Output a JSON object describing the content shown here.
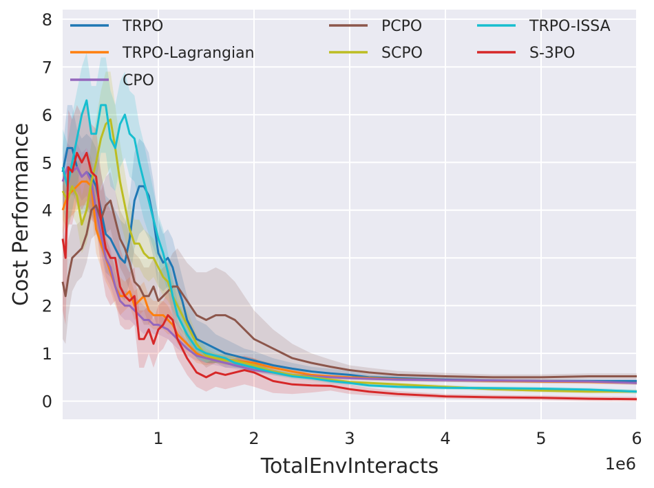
{
  "chart_data": {
    "type": "line",
    "title": "",
    "xlabel": "TotalEnvInteracts",
    "ylabel": "Cost Performance",
    "x_offset_label": "1e6",
    "xlim": [
      0,
      6
    ],
    "ylim": [
      -0.38,
      8.2
    ],
    "x_ticks": [
      1,
      2,
      3,
      4,
      5,
      6
    ],
    "y_ticks": [
      0,
      1,
      2,
      3,
      4,
      5,
      6,
      7,
      8
    ],
    "grid": true,
    "legend_position": "top",
    "series": [
      {
        "name": "TRPO",
        "color": "#1f77b4",
        "x": [
          0,
          0.05,
          0.1,
          0.15,
          0.2,
          0.25,
          0.3,
          0.35,
          0.4,
          0.45,
          0.5,
          0.55,
          0.6,
          0.65,
          0.7,
          0.75,
          0.8,
          0.85,
          0.9,
          0.95,
          1.0,
          1.05,
          1.1,
          1.15,
          1.2,
          1.25,
          1.3,
          1.4,
          1.5,
          1.6,
          1.7,
          1.8,
          1.9,
          2.0,
          2.2,
          2.4,
          2.6,
          2.8,
          3.0,
          3.2,
          3.5,
          4.0,
          4.5,
          5.0,
          5.5,
          6.0
        ],
        "y": [
          4.8,
          5.3,
          5.3,
          4.9,
          4.7,
          4.8,
          4.7,
          4.5,
          4.0,
          3.5,
          3.4,
          3.2,
          3.0,
          2.9,
          3.4,
          4.2,
          4.5,
          4.5,
          4.3,
          3.8,
          3.1,
          2.9,
          3.0,
          2.8,
          2.4,
          2.1,
          1.7,
          1.3,
          1.2,
          1.1,
          1.0,
          0.95,
          0.9,
          0.85,
          0.75,
          0.68,
          0.62,
          0.58,
          0.55,
          0.5,
          0.48,
          0.45,
          0.43,
          0.42,
          0.42,
          0.42
        ],
        "band": [
          0.5,
          0.9,
          0.9,
          0.8,
          0.8,
          0.8,
          0.8,
          0.8,
          0.8,
          0.8,
          0.8,
          0.8,
          0.8,
          0.8,
          0.9,
          1.0,
          1.0,
          0.9,
          0.9,
          0.8,
          0.7,
          0.6,
          0.6,
          0.6,
          0.6,
          0.5,
          0.5,
          0.4,
          0.4,
          0.3,
          0.3,
          0.25,
          0.2,
          0.2,
          0.15,
          0.12,
          0.1,
          0.1,
          0.08,
          0.06,
          0.05,
          0.05,
          0.04,
          0.04,
          0.04,
          0.04
        ]
      },
      {
        "name": "TRPO-Lagrangian",
        "color": "#ff7f0e",
        "x": [
          0,
          0.05,
          0.1,
          0.15,
          0.2,
          0.25,
          0.3,
          0.35,
          0.4,
          0.45,
          0.5,
          0.55,
          0.6,
          0.65,
          0.7,
          0.75,
          0.8,
          0.85,
          0.9,
          0.95,
          1.0,
          1.05,
          1.1,
          1.15,
          1.2,
          1.3,
          1.4,
          1.5,
          1.6,
          1.8,
          2.0,
          2.2,
          2.4,
          2.6,
          2.8,
          3.0,
          3.5,
          4.0,
          4.5,
          5.0,
          5.5,
          6.0
        ],
        "y": [
          4.0,
          4.3,
          4.4,
          4.5,
          4.6,
          4.6,
          4.5,
          3.6,
          3.3,
          3.0,
          2.7,
          2.4,
          2.2,
          2.2,
          2.3,
          2.0,
          2.1,
          2.2,
          1.9,
          1.8,
          1.8,
          1.8,
          1.7,
          1.6,
          1.4,
          1.2,
          1.0,
          0.9,
          0.9,
          0.85,
          0.8,
          0.7,
          0.62,
          0.55,
          0.52,
          0.5,
          0.46,
          0.44,
          0.42,
          0.41,
          0.4,
          0.38
        ],
        "band": [
          0.5,
          0.5,
          0.5,
          0.5,
          0.5,
          0.5,
          0.5,
          0.5,
          0.5,
          0.5,
          0.4,
          0.4,
          0.4,
          0.3,
          0.3,
          0.3,
          0.3,
          0.3,
          0.3,
          0.3,
          0.3,
          0.3,
          0.3,
          0.2,
          0.2,
          0.2,
          0.2,
          0.15,
          0.1,
          0.1,
          0.1,
          0.08,
          0.08,
          0.06,
          0.06,
          0.05,
          0.05,
          0.04,
          0.04,
          0.04,
          0.04,
          0.04
        ]
      },
      {
        "name": "CPO",
        "color": "#9467bd",
        "x": [
          0,
          0.05,
          0.1,
          0.15,
          0.2,
          0.25,
          0.3,
          0.35,
          0.4,
          0.45,
          0.5,
          0.55,
          0.6,
          0.65,
          0.7,
          0.75,
          0.8,
          0.85,
          0.9,
          0.95,
          1.0,
          1.1,
          1.2,
          1.3,
          1.4,
          1.5,
          1.6,
          1.8,
          2.0,
          2.2,
          2.4,
          2.6,
          2.8,
          3.0,
          3.5,
          4.0,
          4.5,
          5.0,
          5.5,
          6.0
        ],
        "y": [
          4.6,
          4.9,
          4.8,
          4.9,
          4.7,
          4.8,
          4.6,
          4.0,
          3.5,
          3.0,
          2.8,
          2.4,
          2.1,
          2.0,
          2.0,
          1.9,
          1.8,
          1.7,
          1.7,
          1.6,
          1.6,
          1.5,
          1.3,
          1.1,
          0.95,
          0.9,
          0.85,
          0.75,
          0.65,
          0.6,
          0.55,
          0.52,
          0.5,
          0.48,
          0.45,
          0.44,
          0.43,
          0.42,
          0.41,
          0.38
        ],
        "band": [
          0.5,
          0.5,
          0.5,
          0.5,
          0.5,
          0.5,
          0.5,
          0.4,
          0.4,
          0.4,
          0.4,
          0.3,
          0.3,
          0.3,
          0.3,
          0.3,
          0.3,
          0.3,
          0.2,
          0.2,
          0.2,
          0.2,
          0.2,
          0.15,
          0.1,
          0.1,
          0.1,
          0.08,
          0.06,
          0.05,
          0.05,
          0.05,
          0.05,
          0.04,
          0.04,
          0.04,
          0.04,
          0.04,
          0.04,
          0.04
        ]
      },
      {
        "name": "PCPO",
        "color": "#8c564b",
        "x": [
          0,
          0.03,
          0.06,
          0.1,
          0.15,
          0.2,
          0.25,
          0.3,
          0.35,
          0.4,
          0.45,
          0.5,
          0.55,
          0.6,
          0.65,
          0.7,
          0.75,
          0.8,
          0.85,
          0.9,
          0.95,
          1.0,
          1.05,
          1.1,
          1.15,
          1.2,
          1.3,
          1.4,
          1.5,
          1.6,
          1.7,
          1.8,
          1.9,
          2.0,
          2.1,
          2.2,
          2.3,
          2.4,
          2.5,
          2.6,
          2.8,
          3.0,
          3.2,
          3.5,
          4.0,
          4.5,
          5.0,
          5.5,
          6.0
        ],
        "y": [
          2.5,
          2.2,
          2.6,
          3.0,
          3.1,
          3.2,
          3.5,
          4.0,
          4.1,
          3.8,
          4.1,
          4.2,
          3.8,
          3.4,
          3.2,
          2.9,
          2.5,
          2.4,
          2.2,
          2.2,
          2.4,
          2.1,
          2.2,
          2.3,
          2.4,
          2.4,
          2.1,
          1.8,
          1.7,
          1.8,
          1.8,
          1.7,
          1.5,
          1.3,
          1.2,
          1.1,
          1.0,
          0.9,
          0.85,
          0.8,
          0.72,
          0.65,
          0.6,
          0.55,
          0.52,
          0.5,
          0.5,
          0.52,
          0.52
        ],
        "band": [
          1.2,
          1.0,
          0.8,
          0.7,
          0.6,
          0.6,
          0.6,
          0.6,
          0.6,
          0.6,
          0.6,
          0.6,
          0.6,
          0.6,
          0.6,
          0.6,
          0.6,
          0.6,
          0.6,
          0.6,
          0.6,
          0.6,
          0.6,
          0.6,
          0.7,
          0.8,
          0.8,
          0.9,
          1.0,
          1.0,
          0.9,
          0.8,
          0.7,
          0.6,
          0.5,
          0.4,
          0.35,
          0.3,
          0.25,
          0.2,
          0.15,
          0.1,
          0.1,
          0.08,
          0.07,
          0.06,
          0.06,
          0.06,
          0.06
        ]
      },
      {
        "name": "SCPO",
        "color": "#bcbd22",
        "x": [
          0,
          0.05,
          0.1,
          0.15,
          0.2,
          0.25,
          0.3,
          0.35,
          0.4,
          0.45,
          0.5,
          0.55,
          0.6,
          0.65,
          0.7,
          0.75,
          0.8,
          0.85,
          0.9,
          0.95,
          1.0,
          1.05,
          1.1,
          1.15,
          1.2,
          1.3,
          1.4,
          1.5,
          1.6,
          1.7,
          1.8,
          2.0,
          2.2,
          2.4,
          2.6,
          2.8,
          3.0,
          3.5,
          4.0,
          4.5,
          5.0,
          5.5,
          6.0
        ],
        "y": [
          4.4,
          4.2,
          4.5,
          4.3,
          3.7,
          4.0,
          4.6,
          5.0,
          5.5,
          5.8,
          5.9,
          5.3,
          4.6,
          4.1,
          3.6,
          3.3,
          3.3,
          3.1,
          3.0,
          3.0,
          2.8,
          2.6,
          2.5,
          2.2,
          2.0,
          1.6,
          1.2,
          0.95,
          0.9,
          0.85,
          0.85,
          0.75,
          0.62,
          0.55,
          0.5,
          0.45,
          0.4,
          0.35,
          0.3,
          0.25,
          0.22,
          0.2,
          0.2
        ],
        "band": [
          0.6,
          0.6,
          0.6,
          0.6,
          0.6,
          0.7,
          0.8,
          0.9,
          1.0,
          1.1,
          1.0,
          0.9,
          0.8,
          0.7,
          0.6,
          0.5,
          0.5,
          0.5,
          0.5,
          0.4,
          0.4,
          0.4,
          0.4,
          0.3,
          0.3,
          0.3,
          0.2,
          0.15,
          0.1,
          0.1,
          0.1,
          0.08,
          0.06,
          0.05,
          0.05,
          0.05,
          0.04,
          0.04,
          0.04,
          0.04,
          0.04,
          0.04,
          0.04
        ]
      },
      {
        "name": "TRPO-ISSA",
        "color": "#17becf",
        "x": [
          0,
          0.05,
          0.1,
          0.15,
          0.2,
          0.25,
          0.3,
          0.35,
          0.4,
          0.45,
          0.5,
          0.55,
          0.6,
          0.65,
          0.7,
          0.75,
          0.8,
          0.85,
          0.9,
          0.95,
          1.0,
          1.05,
          1.1,
          1.15,
          1.2,
          1.3,
          1.4,
          1.5,
          1.6,
          1.7,
          1.8,
          2.0,
          2.2,
          2.4,
          2.6,
          2.8,
          3.0,
          3.2,
          3.5,
          4.0,
          4.5,
          5.0,
          5.5,
          6.0
        ],
        "y": [
          4.9,
          4.5,
          5.0,
          5.5,
          6.0,
          6.3,
          5.6,
          5.6,
          6.2,
          6.2,
          5.5,
          5.3,
          5.8,
          6.0,
          5.6,
          5.5,
          5.0,
          4.6,
          4.2,
          3.8,
          3.4,
          3.1,
          2.7,
          2.2,
          1.8,
          1.4,
          1.1,
          1.0,
          0.95,
          0.9,
          0.8,
          0.7,
          0.6,
          0.52,
          0.48,
          0.42,
          0.38,
          0.33,
          0.3,
          0.28,
          0.27,
          0.26,
          0.24,
          0.2
        ],
        "band": [
          0.8,
          0.9,
          1.0,
          1.0,
          1.0,
          1.0,
          1.0,
          1.0,
          1.0,
          1.0,
          1.0,
          0.9,
          0.9,
          0.9,
          0.9,
          0.9,
          0.8,
          0.8,
          0.7,
          0.6,
          0.5,
          0.5,
          0.4,
          0.4,
          0.3,
          0.3,
          0.2,
          0.2,
          0.15,
          0.1,
          0.1,
          0.08,
          0.06,
          0.05,
          0.05,
          0.05,
          0.04,
          0.04,
          0.04,
          0.04,
          0.04,
          0.04,
          0.04,
          0.04
        ]
      },
      {
        "name": "S-3PO",
        "color": "#d62728",
        "x": [
          0,
          0.03,
          0.06,
          0.1,
          0.15,
          0.2,
          0.25,
          0.3,
          0.35,
          0.4,
          0.45,
          0.5,
          0.55,
          0.6,
          0.65,
          0.7,
          0.75,
          0.8,
          0.85,
          0.9,
          0.95,
          1.0,
          1.05,
          1.1,
          1.15,
          1.2,
          1.3,
          1.4,
          1.5,
          1.6,
          1.7,
          1.8,
          1.9,
          2.0,
          2.2,
          2.4,
          2.6,
          2.8,
          3.0,
          3.2,
          3.5,
          4.0,
          4.5,
          5.0,
          5.5,
          6.0
        ],
        "y": [
          3.4,
          3.0,
          4.9,
          4.8,
          5.2,
          5.0,
          5.2,
          4.8,
          4.7,
          3.8,
          3.2,
          3.0,
          3.0,
          2.4,
          2.2,
          2.1,
          2.2,
          1.3,
          1.3,
          1.5,
          1.2,
          1.5,
          1.6,
          1.8,
          1.7,
          1.3,
          0.9,
          0.6,
          0.5,
          0.6,
          0.55,
          0.6,
          0.65,
          0.6,
          0.42,
          0.35,
          0.33,
          0.32,
          0.25,
          0.2,
          0.15,
          0.1,
          0.08,
          0.07,
          0.05,
          0.04
        ],
        "band": [
          1.5,
          1.4,
          1.2,
          1.1,
          1.0,
          1.0,
          1.0,
          1.0,
          1.0,
          1.0,
          1.0,
          1.0,
          0.9,
          0.8,
          0.7,
          0.6,
          0.6,
          0.6,
          0.6,
          0.5,
          0.5,
          0.5,
          0.5,
          0.5,
          0.5,
          0.4,
          0.35,
          0.3,
          0.3,
          0.3,
          0.3,
          0.3,
          0.3,
          0.3,
          0.25,
          0.2,
          0.15,
          0.1,
          0.1,
          0.08,
          0.06,
          0.05,
          0.05,
          0.05,
          0.05,
          0.05
        ]
      }
    ]
  }
}
